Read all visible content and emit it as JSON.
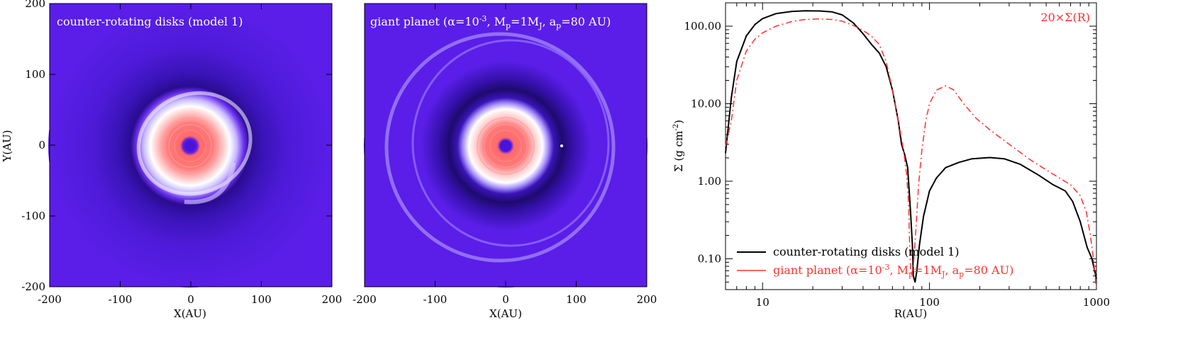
{
  "chart_data": [
    {
      "type": "heatmap",
      "title": "counter-rotating disks (model 1)",
      "xlabel": "X(AU)",
      "ylabel": "Y(AU)",
      "xlim": [
        -200,
        200
      ],
      "ylim": [
        -200,
        200
      ],
      "x_ticks": [
        "-200",
        "-100",
        "0",
        "100",
        "200"
      ],
      "y_ticks": [
        "200",
        "100",
        "0",
        "-100",
        "-200"
      ],
      "colors": {
        "background": "#5a1ee8",
        "gap": "#1e0a6e",
        "core": "#ff7070",
        "ring": "#ffffff",
        "center": "#4a14d8"
      }
    },
    {
      "type": "heatmap",
      "title_parts": {
        "t1": "giant planet (α=10",
        "t2": "-3",
        "t3": ", M",
        "t4": "p",
        "t5": "=1M",
        "t6": "J",
        "t7": ", a",
        "t8": "p",
        "t9": "=80 AU)"
      },
      "xlabel": "X(AU)",
      "xlim": [
        -200,
        200
      ],
      "ylim": [
        -200,
        200
      ],
      "x_ticks": [
        "-200",
        "-100",
        "0",
        "100",
        "200"
      ],
      "colors": {
        "background": "#5a1ee8",
        "gap": "#1e0a6e",
        "core": "#ff7070",
        "ring": "#ffffff",
        "center": "#4a14d8"
      }
    },
    {
      "type": "line",
      "xlabel": "R(AU)",
      "ylabel_parts": {
        "main": "Σ (g cm",
        "sup": "-2",
        "close": ")"
      },
      "xscale": "log",
      "yscale": "log",
      "xlim": [
        6,
        1000
      ],
      "ylim": [
        0.04,
        200
      ],
      "x_ticks": [
        {
          "v": 10,
          "label": "10"
        },
        {
          "v": 100,
          "label": "100"
        },
        {
          "v": 1000,
          "label": "1000"
        }
      ],
      "y_ticks": [
        {
          "v": 0.1,
          "label": "0.10"
        },
        {
          "v": 1,
          "label": "1.00"
        },
        {
          "v": 10,
          "label": "10.00"
        },
        {
          "v": 100,
          "label": "100.00"
        }
      ],
      "annotation": "20×Σ(R)",
      "series": [
        {
          "name": "counter-rotating disks (model 1)",
          "color": "#000000",
          "style": "solid",
          "points": [
            [
              6,
              2.3
            ],
            [
              6.5,
              12
            ],
            [
              7,
              35
            ],
            [
              8,
              75
            ],
            [
              9,
              105
            ],
            [
              10,
              125
            ],
            [
              12,
              145
            ],
            [
              15,
              155
            ],
            [
              18,
              158
            ],
            [
              22,
              157
            ],
            [
              26,
              153
            ],
            [
              30,
              140
            ],
            [
              35,
              110
            ],
            [
              40,
              80
            ],
            [
              45,
              58
            ],
            [
              50,
              45
            ],
            [
              55,
              30
            ],
            [
              60,
              15
            ],
            [
              65,
              6
            ],
            [
              68,
              3
            ],
            [
              71,
              2.2
            ],
            [
              74,
              1.5
            ],
            [
              77,
              0.4
            ],
            [
              79,
              0.15
            ],
            [
              80,
              0.06
            ],
            [
              82,
              0.05
            ],
            [
              84,
              0.07
            ],
            [
              87,
              0.15
            ],
            [
              92,
              0.35
            ],
            [
              100,
              0.75
            ],
            [
              110,
              1.1
            ],
            [
              125,
              1.5
            ],
            [
              150,
              1.75
            ],
            [
              180,
              1.95
            ],
            [
              230,
              2.02
            ],
            [
              280,
              1.95
            ],
            [
              350,
              1.65
            ],
            [
              450,
              1.2
            ],
            [
              550,
              0.9
            ],
            [
              650,
              0.75
            ],
            [
              720,
              0.55
            ],
            [
              800,
              0.3
            ],
            [
              880,
              0.14
            ],
            [
              940,
              0.1
            ],
            [
              1000,
              0.055
            ]
          ]
        },
        {
          "name_parts": {
            "t1": "giant planet (α=10",
            "t2": "-3",
            "t3": ", M",
            "t4": "p",
            "t5": "=1M",
            "t6": "J",
            "t7": ", a",
            "t8": "p",
            "t9": "=80 AU)"
          },
          "color": "#ff3030",
          "style": "dashdot",
          "points": [
            [
              6,
              2.8
            ],
            [
              6.5,
              6
            ],
            [
              7,
              20
            ],
            [
              8,
              48
            ],
            [
              9,
              68
            ],
            [
              10,
              82
            ],
            [
              12,
              100
            ],
            [
              15,
              115
            ],
            [
              18,
              122
            ],
            [
              22,
              124
            ],
            [
              26,
              122
            ],
            [
              30,
              116
            ],
            [
              35,
              102
            ],
            [
              40,
              88
            ],
            [
              45,
              74
            ],
            [
              50,
              58
            ],
            [
              55,
              35
            ],
            [
              60,
              15
            ],
            [
              65,
              6
            ],
            [
              70,
              2.5
            ],
            [
              73,
              1.2
            ],
            [
              75,
              0.5
            ],
            [
              76,
              0.15
            ],
            [
              77,
              0.07
            ],
            [
              78,
              0.06
            ],
            [
              80,
              0.08
            ],
            [
              83,
              0.25
            ],
            [
              86,
              0.9
            ],
            [
              90,
              2.5
            ],
            [
              95,
              6
            ],
            [
              100,
              10
            ],
            [
              110,
              15
            ],
            [
              125,
              17
            ],
            [
              140,
              15
            ],
            [
              160,
              10
            ],
            [
              190,
              6.5
            ],
            [
              230,
              4.6
            ],
            [
              300,
              3
            ],
            [
              400,
              1.9
            ],
            [
              500,
              1.4
            ],
            [
              600,
              1.1
            ],
            [
              700,
              0.9
            ],
            [
              800,
              0.65
            ],
            [
              870,
              0.4
            ],
            [
              920,
              0.2
            ],
            [
              960,
              0.1
            ],
            [
              1000,
              0.04
            ]
          ]
        }
      ],
      "legend_position": "bottom-left"
    }
  ]
}
